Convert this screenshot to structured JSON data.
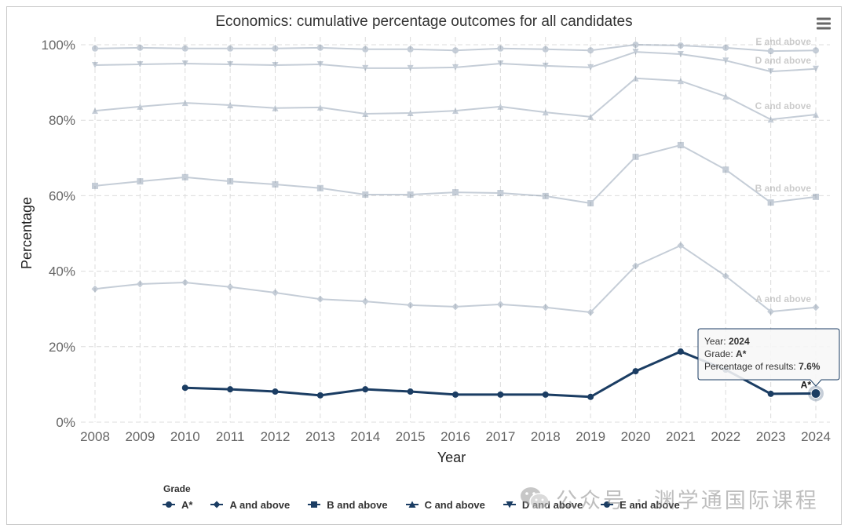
{
  "chart_data": {
    "type": "line",
    "title": "Economics: cumulative percentage outcomes for all candidates",
    "xlabel": "Year",
    "ylabel": "Percentage",
    "x": [
      2008,
      2009,
      2010,
      2011,
      2012,
      2013,
      2014,
      2015,
      2016,
      2017,
      2018,
      2019,
      2020,
      2021,
      2022,
      2023,
      2024
    ],
    "categories": [
      "2008",
      "2009",
      "2010",
      "2011",
      "2012",
      "2013",
      "2014",
      "2015",
      "2016",
      "2017",
      "2018",
      "2019",
      "2020",
      "2021",
      "2022",
      "2023",
      "2024"
    ],
    "xlim": [
      2008,
      2024
    ],
    "ylim": [
      0,
      100
    ],
    "y_ticks": [
      0,
      20,
      40,
      60,
      80,
      100
    ],
    "y_tick_labels": [
      "0%",
      "20%",
      "40%",
      "60%",
      "80%",
      "100%"
    ],
    "grid": true,
    "legend": {
      "title": "Grade",
      "placement": "bottom-left"
    },
    "series": [
      {
        "name": "A*",
        "marker": "circle",
        "highlighted": true,
        "values": [
          null,
          null,
          9.1,
          8.7,
          8.1,
          7.1,
          8.7,
          8.1,
          7.3,
          7.3,
          7.3,
          6.7,
          13.5,
          18.7,
          13.9,
          7.5,
          7.6
        ]
      },
      {
        "name": "A and above",
        "marker": "diamond",
        "highlighted": false,
        "values": [
          35.3,
          36.6,
          37.0,
          35.8,
          34.3,
          32.6,
          32.0,
          31.0,
          30.6,
          31.2,
          30.4,
          29.1,
          41.4,
          46.8,
          38.7,
          29.3,
          30.4
        ]
      },
      {
        "name": "B and above",
        "marker": "square",
        "highlighted": false,
        "values": [
          62.6,
          63.8,
          64.9,
          63.8,
          63.0,
          62.0,
          60.3,
          60.3,
          60.9,
          60.7,
          59.9,
          58.0,
          70.3,
          73.4,
          66.9,
          58.2,
          59.7
        ]
      },
      {
        "name": "C and above",
        "marker": "triangle",
        "highlighted": false,
        "values": [
          82.5,
          83.6,
          84.6,
          84.0,
          83.2,
          83.4,
          81.7,
          81.9,
          82.5,
          83.6,
          82.1,
          80.9,
          91.1,
          90.4,
          86.3,
          80.2,
          81.5
        ]
      },
      {
        "name": "D and above",
        "marker": "triangle-down",
        "highlighted": false,
        "values": [
          94.6,
          94.8,
          95.0,
          94.8,
          94.6,
          94.8,
          93.8,
          93.8,
          94.0,
          95.0,
          94.4,
          94.0,
          98.1,
          97.5,
          95.8,
          92.9,
          93.6
        ]
      },
      {
        "name": "E and above",
        "marker": "circle",
        "highlighted": false,
        "values": [
          99.0,
          99.2,
          99.0,
          99.0,
          99.0,
          99.2,
          98.8,
          98.8,
          98.5,
          99.0,
          98.8,
          98.5,
          100.0,
          99.8,
          99.2,
          98.3,
          98.5
        ]
      }
    ]
  },
  "tooltip": {
    "year_label": "Year:",
    "year": "2024",
    "grade_label": "Grade:",
    "grade": "A*",
    "percentage_label": "Percentage of results:",
    "percentage": "7.6%"
  },
  "colors": {
    "series": "#1b3d63",
    "grid": "#dcdcdc",
    "title_text": "#333333",
    "tick_text": "#666666",
    "tooltip_background": "#f7f7f7",
    "frame": "#c9c9c9"
  },
  "icons": {
    "menu": "hamburger-menu-icon",
    "watermark": "wechat-icon"
  },
  "watermark": {
    "text": "公众号 · 渊学通国际课程"
  }
}
